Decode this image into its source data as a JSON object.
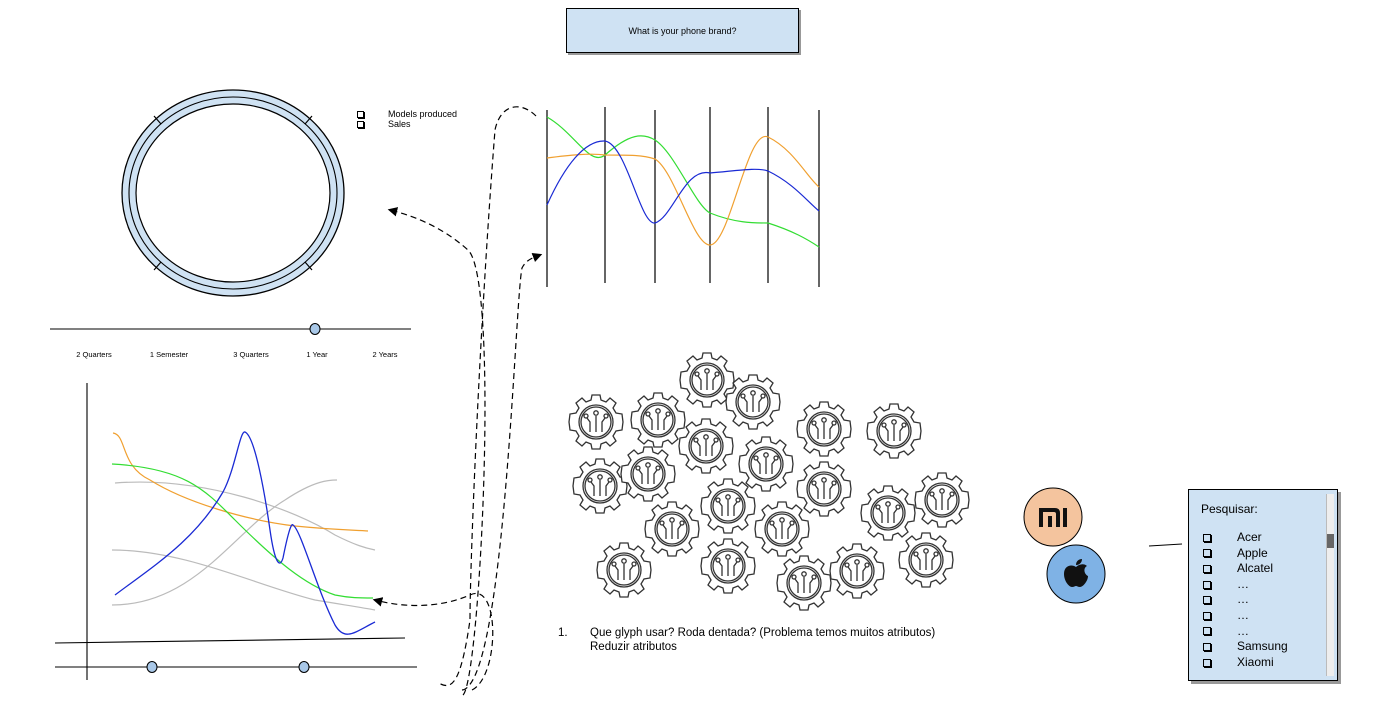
{
  "question": "What is your phone brand?",
  "legend": [
    {
      "label": "Models produced"
    },
    {
      "label": "Sales"
    }
  ],
  "timeline": {
    "labels": [
      "2 Quarters",
      "1 Semester",
      "3 Quarters",
      "1 Year",
      "2 Years"
    ],
    "selected": "1 Year"
  },
  "note": {
    "number": "1.",
    "line1": "Que glyph usar? Roda dentada? (Problema temos muitos atributos)",
    "line2": "Reduzir atributos"
  },
  "brands": [
    {
      "name": "Xiaomi",
      "text": "mi",
      "color": "#f4c49e"
    },
    {
      "name": "Apple",
      "color": "#7fb2e5"
    }
  ],
  "search_panel": {
    "title": "Pesquisar:",
    "items": [
      "Acer",
      "Apple",
      "Alcatel",
      "…",
      "…",
      "…",
      "…",
      "Samsung",
      "Xiaomi"
    ]
  },
  "colors": {
    "orange": "#f0a030",
    "green": "#33dd33",
    "blue": "#1a2ad4",
    "gray": "#bbbbbb",
    "panel": "#cfe2f3"
  }
}
